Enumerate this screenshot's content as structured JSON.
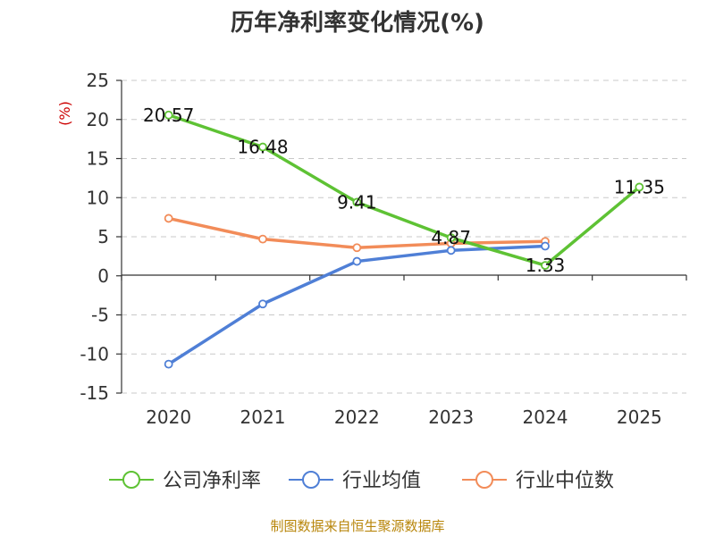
{
  "chart_data": {
    "type": "line",
    "title": "历年净利率变化情况(%)",
    "ylabel": "(%)",
    "xlabel": "",
    "categories": [
      "2020",
      "2021",
      "2022",
      "2023",
      "2024",
      "2025"
    ],
    "ylim": [
      -15,
      25
    ],
    "yticks": [
      25,
      20,
      15,
      10,
      5,
      0,
      -5,
      -10,
      -15
    ],
    "grid": true,
    "legend": "bottom",
    "series": [
      {
        "name": "公司净利率",
        "color": "#5ec234",
        "values": [
          20.57,
          16.48,
          9.41,
          4.87,
          1.33,
          11.35
        ],
        "labels": [
          "20.57",
          "16.48",
          "9.41",
          "4.87",
          "1.33",
          "11.35"
        ]
      },
      {
        "name": "行业均值",
        "color": "#4f7fd6",
        "values": [
          -11.3,
          -3.6,
          1.85,
          3.25,
          3.8,
          null
        ]
      },
      {
        "name": "行业中位数",
        "color": "#f28c59",
        "values": [
          7.35,
          4.7,
          3.6,
          4.15,
          4.4,
          null
        ]
      }
    ]
  },
  "source": "制图数据来自恒生聚源数据库"
}
